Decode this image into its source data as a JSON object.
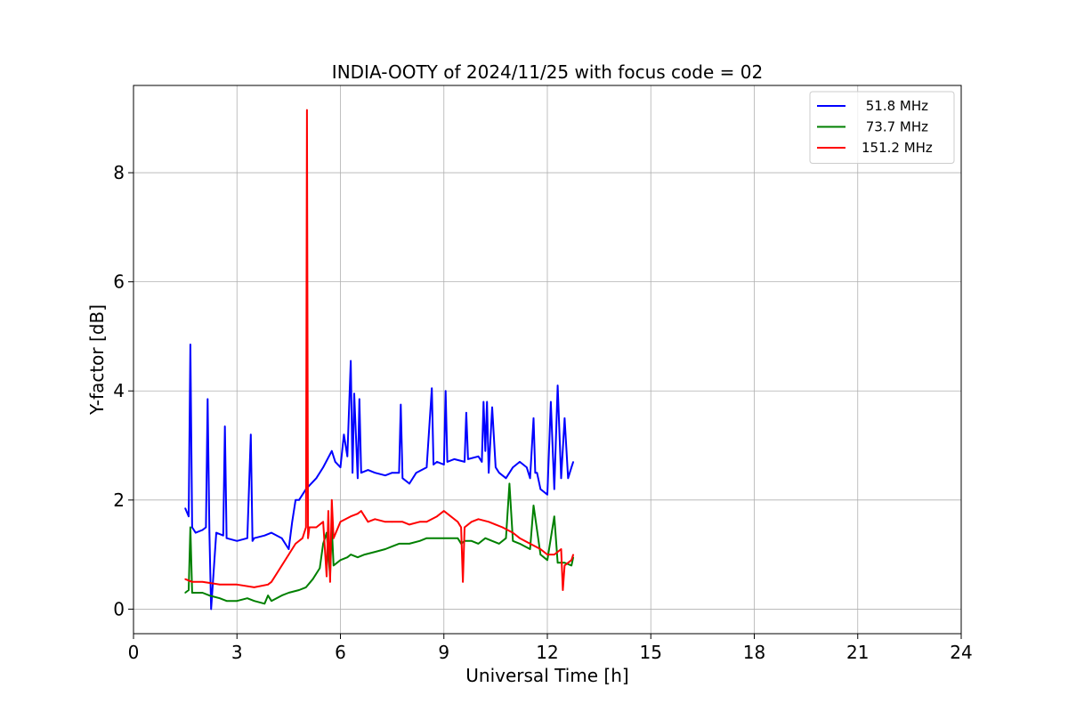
{
  "chart_data": {
    "type": "line",
    "title": "INDIA-OOTY of 2024/11/25 with focus code = 02",
    "xlabel": "Universal Time [h]",
    "ylabel": "Y-factor [dB]",
    "xlim": [
      0,
      24
    ],
    "ylim": [
      -0.45,
      9.6
    ],
    "xticks": [
      0,
      3,
      6,
      9,
      12,
      15,
      18,
      21,
      24
    ],
    "yticks": [
      0,
      2,
      4,
      6,
      8
    ],
    "grid": true,
    "legend_position": "top-right",
    "series": [
      {
        "name": " 51.8 MHz",
        "color": "#0000ff",
        "x": [
          1.5,
          1.6,
          1.65,
          1.7,
          1.8,
          2.0,
          2.1,
          2.15,
          2.2,
          2.25,
          2.4,
          2.6,
          2.65,
          2.7,
          3.0,
          3.3,
          3.4,
          3.45,
          3.5,
          3.8,
          4.0,
          4.3,
          4.5,
          4.6,
          4.7,
          4.8,
          5.0,
          5.3,
          5.5,
          5.75,
          5.85,
          6.0,
          6.1,
          6.2,
          6.3,
          6.35,
          6.4,
          6.5,
          6.55,
          6.6,
          6.8,
          7.0,
          7.3,
          7.5,
          7.7,
          7.75,
          7.8,
          8.0,
          8.2,
          8.5,
          8.65,
          8.7,
          8.8,
          9.0,
          9.05,
          9.1,
          9.3,
          9.6,
          9.65,
          9.7,
          10.0,
          10.1,
          10.15,
          10.2,
          10.25,
          10.3,
          10.4,
          10.5,
          10.6,
          10.8,
          11.0,
          11.2,
          11.4,
          11.5,
          11.6,
          11.65,
          11.7,
          11.8,
          12.0,
          12.1,
          12.2,
          12.3,
          12.4,
          12.5,
          12.6,
          12.7,
          12.75
        ],
        "y": [
          1.85,
          1.7,
          4.85,
          1.5,
          1.4,
          1.45,
          1.5,
          3.85,
          1.4,
          0.0,
          1.4,
          1.35,
          3.35,
          1.3,
          1.25,
          1.3,
          3.2,
          1.25,
          1.3,
          1.35,
          1.4,
          1.3,
          1.1,
          1.6,
          2.0,
          2.0,
          2.2,
          2.4,
          2.6,
          2.9,
          2.7,
          2.6,
          3.2,
          2.8,
          4.55,
          2.5,
          3.95,
          2.4,
          3.85,
          2.5,
          2.55,
          2.5,
          2.45,
          2.5,
          2.5,
          3.75,
          2.4,
          2.3,
          2.5,
          2.6,
          4.05,
          2.65,
          2.7,
          2.65,
          4.0,
          2.7,
          2.75,
          2.7,
          3.6,
          2.75,
          2.8,
          2.7,
          3.8,
          2.9,
          3.8,
          2.5,
          3.7,
          2.6,
          2.5,
          2.4,
          2.6,
          2.7,
          2.6,
          2.4,
          3.5,
          2.5,
          2.5,
          2.2,
          2.1,
          3.8,
          2.2,
          4.1,
          2.4,
          3.5,
          2.4,
          2.6,
          2.7
        ]
      },
      {
        "name": " 73.7 MHz",
        "color": "#008000",
        "x": [
          1.5,
          1.6,
          1.65,
          1.7,
          2.0,
          2.2,
          2.5,
          2.7,
          3.0,
          3.3,
          3.5,
          3.8,
          3.9,
          4.0,
          4.3,
          4.5,
          4.8,
          5.0,
          5.2,
          5.4,
          5.5,
          5.6,
          5.7,
          5.75,
          5.8,
          6.0,
          6.2,
          6.3,
          6.5,
          6.7,
          7.0,
          7.3,
          7.5,
          7.7,
          8.0,
          8.3,
          8.5,
          8.7,
          9.0,
          9.2,
          9.4,
          9.5,
          9.6,
          9.8,
          10.0,
          10.2,
          10.4,
          10.6,
          10.8,
          10.9,
          11.0,
          11.2,
          11.5,
          11.6,
          11.8,
          12.0,
          12.2,
          12.3,
          12.5,
          12.7,
          12.75
        ],
        "y": [
          0.3,
          0.35,
          1.5,
          0.3,
          0.3,
          0.25,
          0.2,
          0.15,
          0.15,
          0.2,
          0.15,
          0.1,
          0.25,
          0.15,
          0.25,
          0.3,
          0.35,
          0.4,
          0.55,
          0.75,
          1.2,
          1.4,
          0.6,
          1.5,
          0.8,
          0.9,
          0.95,
          1.0,
          0.95,
          1.0,
          1.05,
          1.1,
          1.15,
          1.2,
          1.2,
          1.25,
          1.3,
          1.3,
          1.3,
          1.3,
          1.3,
          1.2,
          1.25,
          1.25,
          1.2,
          1.3,
          1.25,
          1.2,
          1.3,
          2.3,
          1.25,
          1.2,
          1.1,
          1.9,
          1.0,
          0.9,
          1.7,
          0.85,
          0.85,
          0.8,
          0.95
        ]
      },
      {
        "name": "151.2 MHz",
        "color": "#ff0000",
        "x": [
          1.5,
          1.7,
          2.0,
          2.5,
          3.0,
          3.5,
          3.9,
          4.0,
          4.2,
          4.5,
          4.7,
          4.9,
          5.0,
          5.03,
          5.06,
          5.1,
          5.3,
          5.5,
          5.6,
          5.65,
          5.7,
          5.75,
          5.8,
          6.0,
          6.3,
          6.5,
          6.6,
          6.8,
          7.0,
          7.3,
          7.5,
          7.8,
          8.0,
          8.3,
          8.5,
          8.8,
          9.0,
          9.2,
          9.4,
          9.5,
          9.55,
          9.6,
          9.8,
          10.0,
          10.3,
          10.5,
          10.7,
          11.0,
          11.2,
          11.5,
          11.8,
          12.0,
          12.2,
          12.4,
          12.45,
          12.5,
          12.7,
          12.75
        ],
        "y": [
          0.55,
          0.5,
          0.5,
          0.45,
          0.45,
          0.4,
          0.45,
          0.5,
          0.7,
          1.0,
          1.2,
          1.3,
          1.5,
          9.15,
          1.3,
          1.5,
          1.5,
          1.6,
          0.6,
          1.8,
          0.5,
          2.0,
          1.3,
          1.6,
          1.7,
          1.75,
          1.8,
          1.6,
          1.65,
          1.6,
          1.6,
          1.6,
          1.55,
          1.6,
          1.6,
          1.7,
          1.8,
          1.7,
          1.6,
          1.5,
          0.5,
          1.5,
          1.6,
          1.65,
          1.6,
          1.55,
          1.5,
          1.4,
          1.3,
          1.2,
          1.1,
          1.0,
          1.0,
          1.1,
          0.35,
          0.8,
          0.9,
          1.0
        ]
      }
    ]
  }
}
